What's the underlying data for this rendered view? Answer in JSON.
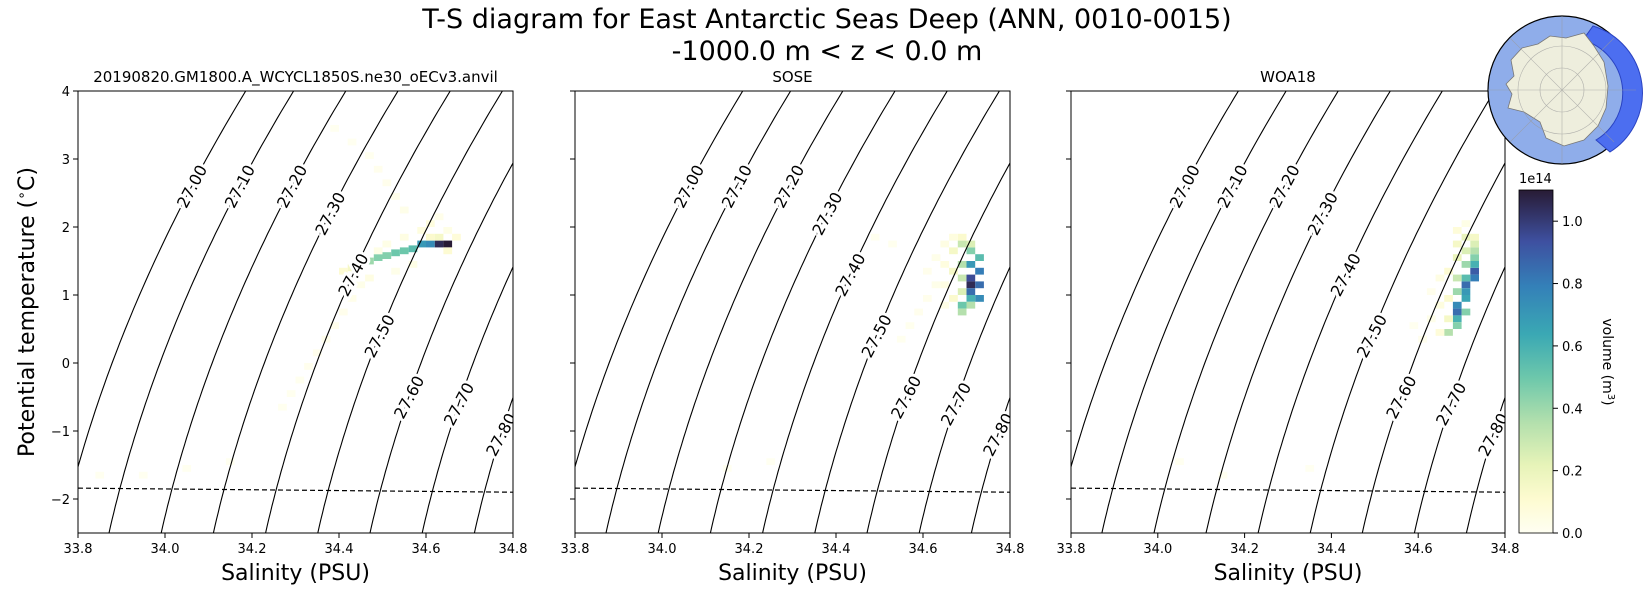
{
  "figure": {
    "title_line1": "T-S diagram for East Antarctic Seas Deep (ANN, 0010-0015)",
    "title_line2": "-1000.0 m < z < 0.0 m"
  },
  "colorbar": {
    "label": "volume (m",
    "label_sup": "3",
    "label_end": ")",
    "exponent": "1e14",
    "ticks": [
      0.0,
      0.2,
      0.4,
      0.6,
      0.8,
      1.0
    ],
    "tick_labels": [
      "0.0",
      "0.2",
      "0.4",
      "0.6",
      "0.8",
      "1.0"
    ],
    "range": [
      0,
      1.1
    ]
  },
  "chart_data": [
    {
      "type": "heatmap",
      "title": "20190820.GM1800.A_WCYCL1850S.ne30_oECv3.anvil",
      "xlabel": "Salinity (PSU)",
      "ylabel": "Potential temperature ($^\\circ$C)",
      "xlim": [
        33.8,
        34.8
      ],
      "ylim": [
        -2.5,
        4
      ],
      "xticks": [
        "33.8",
        "34.0",
        "34.2",
        "34.4",
        "34.6",
        "34.8"
      ],
      "yticks": [
        "−2",
        "−1",
        "0",
        "1",
        "2",
        "3",
        "4"
      ],
      "freezing_line": [
        [
          33.8,
          -1.84
        ],
        [
          34.8,
          -1.9
        ]
      ],
      "cells": [
        [
          34.63,
          1.75,
          1.05
        ],
        [
          34.65,
          1.75,
          1.1
        ],
        [
          34.61,
          1.75,
          0.75
        ],
        [
          34.59,
          1.75,
          0.7
        ],
        [
          34.57,
          1.68,
          0.55
        ],
        [
          34.55,
          1.65,
          0.5
        ],
        [
          34.53,
          1.62,
          0.5
        ],
        [
          34.51,
          1.58,
          0.45
        ],
        [
          34.49,
          1.55,
          0.45
        ],
        [
          34.47,
          1.5,
          0.4
        ],
        [
          34.45,
          1.45,
          0.3
        ],
        [
          34.43,
          1.4,
          0.15
        ],
        [
          34.63,
          1.85,
          0.15
        ],
        [
          34.61,
          1.85,
          0.12
        ],
        [
          34.65,
          1.65,
          0.1
        ],
        [
          34.67,
          1.85,
          0.08
        ],
        [
          34.41,
          1.35,
          0.1
        ],
        [
          34.61,
          2.05,
          0.06
        ],
        [
          34.59,
          1.95,
          0.06
        ],
        [
          34.55,
          1.85,
          0.05
        ],
        [
          34.51,
          1.75,
          0.04
        ],
        [
          34.49,
          1.65,
          0.04
        ],
        [
          34.47,
          1.25,
          0.05
        ],
        [
          34.57,
          1.45,
          0.04
        ],
        [
          34.53,
          1.35,
          0.03
        ],
        [
          34.45,
          1.15,
          0.03
        ],
        [
          34.43,
          0.95,
          0.025
        ],
        [
          34.41,
          0.75,
          0.02
        ],
        [
          34.39,
          0.55,
          0.02
        ],
        [
          34.37,
          0.35,
          0.02
        ],
        [
          34.35,
          0.15,
          0.015
        ],
        [
          34.33,
          -0.05,
          0.015
        ],
        [
          34.31,
          -0.25,
          0.01
        ],
        [
          34.29,
          -0.45,
          0.01
        ],
        [
          34.27,
          -0.65,
          0.01
        ],
        [
          34.55,
          2.25,
          0.03
        ],
        [
          34.53,
          2.45,
          0.025
        ],
        [
          34.51,
          2.65,
          0.02
        ],
        [
          34.49,
          2.85,
          0.015
        ],
        [
          34.47,
          3.05,
          0.01
        ],
        [
          34.43,
          3.25,
          0.008
        ],
        [
          34.39,
          3.45,
          0.006
        ],
        [
          34.63,
          2.15,
          0.025
        ],
        [
          34.65,
          1.95,
          0.04
        ],
        [
          33.85,
          -1.65,
          0.008
        ],
        [
          33.95,
          -1.65,
          0.008
        ],
        [
          34.05,
          -1.55,
          0.006
        ],
        [
          34.15,
          -1.45,
          0.005
        ]
      ]
    },
    {
      "type": "heatmap",
      "title": "SOSE",
      "xlabel": "Salinity (PSU)",
      "xlim": [
        33.8,
        34.8
      ],
      "ylim": [
        -2.5,
        4
      ],
      "xticks": [
        "33.8",
        "34.0",
        "34.2",
        "34.4",
        "34.6",
        "34.8"
      ],
      "freezing_line": [
        [
          33.8,
          -1.84
        ],
        [
          34.8,
          -1.9
        ]
      ],
      "cells": [
        [
          34.71,
          1.15,
          1.05
        ],
        [
          34.71,
          1.25,
          0.95
        ],
        [
          34.71,
          1.05,
          0.85
        ],
        [
          34.73,
          1.35,
          0.8
        ],
        [
          34.73,
          1.15,
          0.85
        ],
        [
          34.73,
          0.95,
          0.75
        ],
        [
          34.71,
          1.45,
          0.7
        ],
        [
          34.71,
          0.95,
          0.6
        ],
        [
          34.69,
          0.85,
          0.5
        ],
        [
          34.73,
          1.55,
          0.55
        ],
        [
          34.71,
          1.65,
          0.45
        ],
        [
          34.69,
          1.75,
          0.3
        ],
        [
          34.69,
          1.45,
          0.35
        ],
        [
          34.69,
          1.25,
          0.3
        ],
        [
          34.69,
          1.05,
          0.25
        ],
        [
          34.71,
          0.85,
          0.35
        ],
        [
          34.69,
          0.75,
          0.35
        ],
        [
          34.67,
          1.65,
          0.15
        ],
        [
          34.67,
          1.35,
          0.15
        ],
        [
          34.67,
          0.95,
          0.12
        ],
        [
          34.71,
          1.75,
          0.25
        ],
        [
          34.69,
          1.85,
          0.12
        ],
        [
          34.67,
          1.85,
          0.06
        ],
        [
          34.65,
          1.75,
          0.05
        ],
        [
          34.65,
          1.45,
          0.06
        ],
        [
          34.65,
          1.15,
          0.05
        ],
        [
          34.65,
          0.85,
          0.04
        ],
        [
          34.63,
          1.55,
          0.03
        ],
        [
          34.63,
          1.15,
          0.03
        ],
        [
          34.61,
          1.35,
          0.02
        ],
        [
          34.61,
          0.95,
          0.02
        ],
        [
          34.59,
          0.75,
          0.015
        ],
        [
          34.57,
          0.55,
          0.012
        ],
        [
          34.55,
          0.35,
          0.01
        ],
        [
          34.53,
          1.75,
          0.012
        ],
        [
          34.49,
          1.85,
          0.01
        ],
        [
          34.15,
          -1.55,
          0.004
        ],
        [
          34.25,
          -1.45,
          0.004
        ]
      ]
    },
    {
      "type": "heatmap",
      "title": "WOA18",
      "xlabel": "Salinity (PSU)",
      "xlim": [
        33.8,
        34.8
      ],
      "ylim": [
        -2.5,
        4
      ],
      "xticks": [
        "33.8",
        "34.0",
        "34.2",
        "34.4",
        "34.6",
        "34.8"
      ],
      "freezing_line": [
        [
          33.8,
          -1.84
        ],
        [
          34.8,
          -1.9
        ]
      ],
      "cells": [
        [
          34.73,
          1.35,
          0.9
        ],
        [
          34.73,
          1.25,
          0.8
        ],
        [
          34.71,
          1.15,
          0.85
        ],
        [
          34.71,
          1.05,
          0.7
        ],
        [
          34.71,
          0.95,
          0.65
        ],
        [
          34.69,
          0.85,
          0.75
        ],
        [
          34.69,
          0.75,
          0.85
        ],
        [
          34.69,
          0.65,
          0.6
        ],
        [
          34.69,
          0.55,
          0.45
        ],
        [
          34.67,
          0.45,
          0.35
        ],
        [
          34.73,
          1.45,
          0.6
        ],
        [
          34.73,
          1.55,
          0.45
        ],
        [
          34.73,
          1.65,
          0.35
        ],
        [
          34.73,
          1.75,
          0.25
        ],
        [
          34.71,
          1.85,
          0.2
        ],
        [
          34.71,
          1.45,
          0.4
        ],
        [
          34.71,
          1.25,
          0.55
        ],
        [
          34.71,
          0.75,
          0.45
        ],
        [
          34.69,
          1.05,
          0.4
        ],
        [
          34.69,
          1.25,
          0.3
        ],
        [
          34.69,
          1.55,
          0.2
        ],
        [
          34.71,
          1.65,
          0.25
        ],
        [
          34.69,
          1.75,
          0.15
        ],
        [
          34.69,
          1.95,
          0.08
        ],
        [
          34.67,
          0.95,
          0.12
        ],
        [
          34.67,
          1.35,
          0.1
        ],
        [
          34.67,
          0.65,
          0.15
        ],
        [
          34.65,
          0.45,
          0.08
        ],
        [
          34.65,
          0.85,
          0.06
        ],
        [
          34.65,
          1.25,
          0.05
        ],
        [
          34.63,
          0.65,
          0.03
        ],
        [
          34.63,
          1.05,
          0.02
        ],
        [
          34.61,
          0.35,
          0.015
        ],
        [
          34.59,
          0.55,
          0.01
        ],
        [
          34.73,
          1.85,
          0.15
        ],
        [
          34.71,
          2.05,
          0.04
        ],
        [
          34.05,
          -1.45,
          0.005
        ],
        [
          34.15,
          -1.65,
          0.004
        ],
        [
          34.35,
          -1.55,
          0.004
        ]
      ]
    }
  ]
}
